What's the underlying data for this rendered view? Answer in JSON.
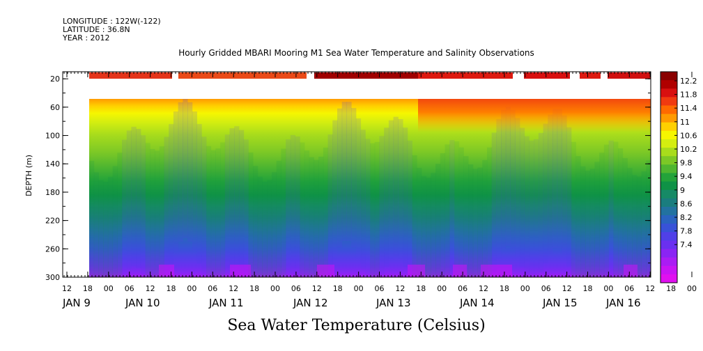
{
  "header": {
    "longitude": "LONGITUDE : 122W(-122)",
    "latitude": "LATITUDE : 36.8N",
    "year": "YEAR : 2012"
  },
  "chart_data": {
    "type": "heatmap",
    "title": "Hourly Gridded MBARI Mooring M1 Sea Water Temperature and Salinity Observations",
    "xlabel": "Sea Water Temperature (Celsius)",
    "ylabel": "DEPTH (m)",
    "ylim": [
      300,
      10
    ],
    "y_ticks": [
      20,
      60,
      100,
      140,
      180,
      220,
      260,
      300
    ],
    "x_hour_ticks": [
      "12",
      "18",
      "00",
      "06",
      "12",
      "18",
      "00",
      "06",
      "12",
      "18",
      "00",
      "06",
      "12",
      "18",
      "00",
      "06",
      "12",
      "18",
      "00",
      "06",
      "12",
      "18",
      "00",
      "06",
      "12",
      "18",
      "00",
      "06",
      "12",
      "18",
      "00",
      "06"
    ],
    "x_day_labels": [
      "JAN  9",
      "JAN 10",
      "JAN 11",
      "JAN 12",
      "JAN 13",
      "JAN 14",
      "JAN 15",
      "JAN 16"
    ],
    "colorbar": {
      "levels": [
        "12.2",
        "11.8",
        "11.4",
        "11",
        "10.6",
        "10.2",
        "9.8",
        "9.4",
        "9",
        "8.6",
        "8.2",
        "7.8",
        "7.4"
      ],
      "colors": [
        "#8a0000",
        "#b00000",
        "#d81010",
        "#f03a10",
        "#ff6a00",
        "#ff9a00",
        "#ffd000",
        "#f6f600",
        "#d4ee10",
        "#a8dc1c",
        "#7cc826",
        "#4fb630",
        "#23a33a",
        "#0f9246",
        "#168a66",
        "#1a7d7e",
        "#2272a0",
        "#2a63c0",
        "#3852d8",
        "#5040e8",
        "#6a30f0",
        "#8a24f4",
        "#aa1cf4",
        "#c814f4",
        "#e010f0"
      ]
    },
    "depth_profiles": [
      {
        "depth": 40,
        "temp_range": [
          10.4,
          12.0
        ]
      },
      {
        "depth": 60,
        "temp_range": [
          10.0,
          11.6
        ]
      },
      {
        "depth": 100,
        "temp_range": [
          9.6,
          10.4
        ]
      },
      {
        "depth": 140,
        "temp_range": [
          9.0,
          9.8
        ]
      },
      {
        "depth": 180,
        "temp_range": [
          8.6,
          9.2
        ]
      },
      {
        "depth": 220,
        "temp_range": [
          8.2,
          8.8
        ]
      },
      {
        "depth": 260,
        "temp_range": [
          7.8,
          8.4
        ]
      },
      {
        "depth": 300,
        "temp_range": [
          7.4,
          8.0
        ]
      }
    ],
    "surface_band_range": [
      11.2,
      12.4
    ]
  }
}
